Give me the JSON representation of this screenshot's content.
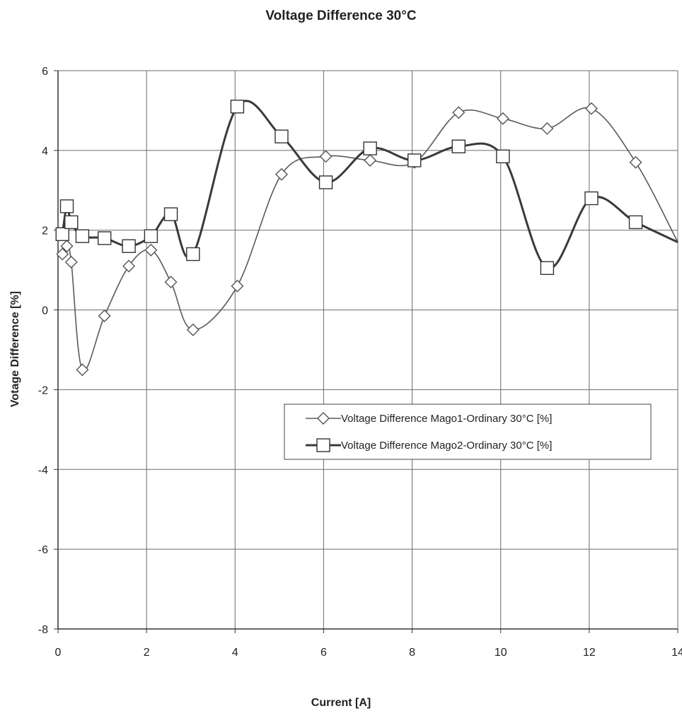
{
  "chart_data": {
    "type": "line",
    "title": "Voltage Difference 30°C",
    "xlabel": "Current [A]",
    "ylabel": "Votage Difference [%]",
    "xlim": [
      0,
      14
    ],
    "ylim": [
      -8,
      6
    ],
    "xticks": [
      0,
      2,
      4,
      6,
      8,
      10,
      12,
      14
    ],
    "xtick_labels": [
      "0",
      "2",
      "4",
      "6",
      "8",
      "10",
      "12",
      "14"
    ],
    "yticks": [
      6,
      4,
      2,
      0,
      -2,
      -4,
      -6,
      -8
    ],
    "ytick_labels": [
      "6",
      "4",
      "2",
      "0",
      "-2",
      "-4",
      "-6",
      "-8"
    ],
    "grid": true,
    "legend_position": "right",
    "series": [
      {
        "name": "Voltage Difference Mago1-Ordinary 30°C [%]",
        "marker": "diamond",
        "color": "#5a5a5a",
        "x": [
          0.1,
          0.2,
          0.3,
          0.55,
          1.05,
          1.6,
          2.1,
          2.55,
          3.05,
          4.05,
          5.05,
          6.05,
          7.05,
          8.05,
          9.05,
          10.05,
          11.05,
          12.05,
          13.05,
          14.2
        ],
        "y": [
          1.4,
          1.6,
          1.2,
          -1.5,
          -0.15,
          1.1,
          1.5,
          0.7,
          -0.5,
          0.6,
          3.4,
          3.85,
          3.75,
          3.7,
          4.95,
          4.8,
          4.55,
          5.05,
          3.7,
          1.7
        ]
      },
      {
        "name": "Voltage Difference Mago2-Ordinary 30°C [%]",
        "marker": "square",
        "color": "#3a3a3a",
        "x": [
          0.1,
          0.2,
          0.3,
          0.55,
          1.05,
          1.6,
          2.1,
          2.55,
          3.05,
          4.05,
          5.05,
          6.05,
          7.05,
          8.05,
          9.05,
          10.05,
          11.05,
          12.05,
          13.05,
          14.2
        ],
        "y": [
          1.9,
          2.6,
          2.2,
          1.85,
          1.8,
          1.6,
          1.85,
          2.4,
          1.4,
          5.1,
          4.35,
          3.2,
          4.05,
          3.75,
          4.1,
          3.85,
          1.05,
          2.8,
          2.2,
          1.7
        ]
      }
    ]
  }
}
